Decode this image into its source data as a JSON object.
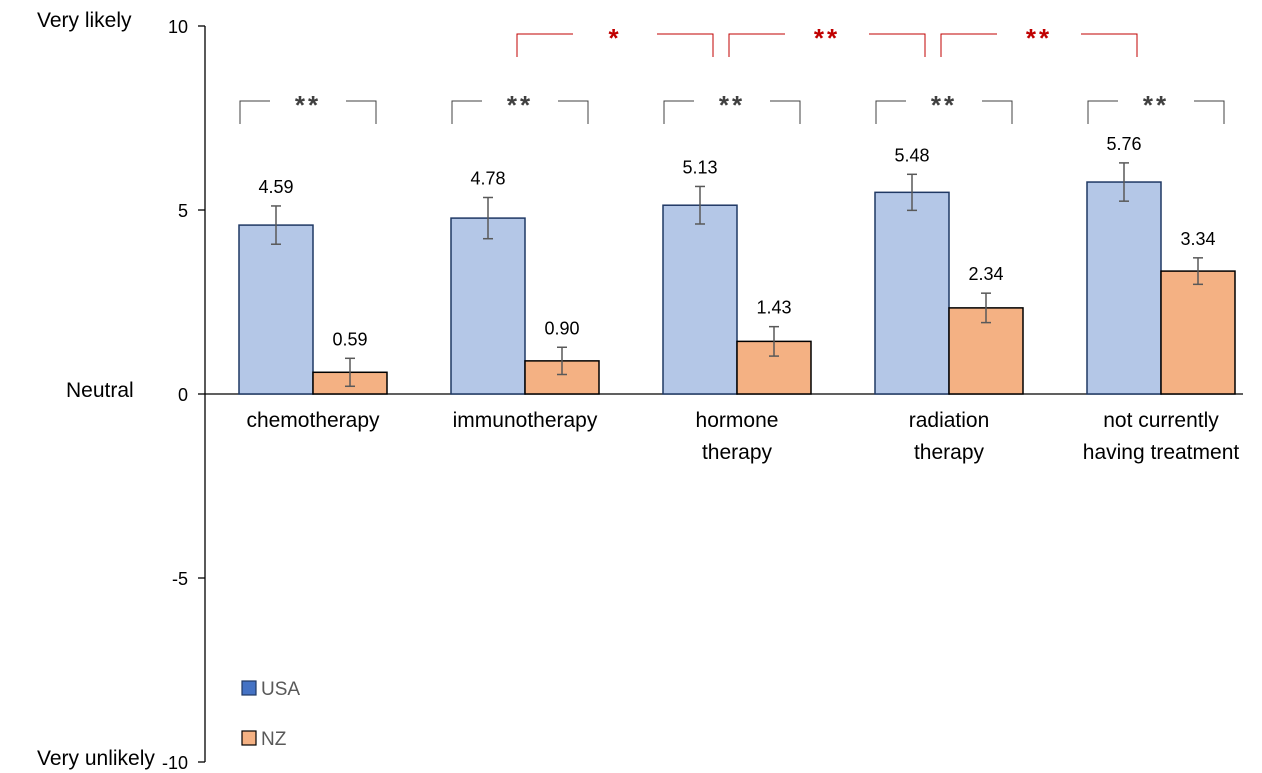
{
  "chart_data": {
    "type": "bar",
    "categories": [
      "chemotherapy",
      "immunotherapy",
      "hormone therapy",
      "radiation therapy",
      "not currently having treatment"
    ],
    "category_lines": [
      [
        "chemotherapy"
      ],
      [
        "immunotherapy"
      ],
      [
        "hormone",
        "therapy"
      ],
      [
        "radiation",
        "therapy"
      ],
      [
        "not currently",
        "having treatment"
      ]
    ],
    "series": [
      {
        "name": "USA",
        "values": [
          4.59,
          4.78,
          5.13,
          5.48,
          5.76
        ],
        "error": [
          0.52,
          0.56,
          0.51,
          0.49,
          0.52
        ],
        "labels": [
          "4.59",
          "4.78",
          "5.13",
          "5.48",
          "5.76"
        ],
        "color": "#b4c7e7",
        "edge": "#1f3864",
        "legend_color": "#4472c4"
      },
      {
        "name": "NZ",
        "values": [
          0.59,
          0.9,
          1.43,
          2.34,
          3.34
        ],
        "error": [
          0.38,
          0.37,
          0.4,
          0.4,
          0.36
        ],
        "labels": [
          "0.59",
          "0.90",
          "1.43",
          "2.34",
          "3.34"
        ],
        "color": "#f4b183",
        "edge": "#000000",
        "legend_color": "#f4b183"
      }
    ],
    "ylim": [
      -10,
      10
    ],
    "yticks": [
      10,
      5,
      0,
      -5,
      -10
    ],
    "ytick_labels": [
      "10",
      "5",
      "0",
      "-5",
      "-10"
    ],
    "y_anchor_labels": {
      "top": "Very likely",
      "middle": "Neutral",
      "bottom": "Very unlikely"
    },
    "within_category_significance": [
      "**",
      "**",
      "**",
      "**",
      "**"
    ],
    "between_category_significance": [
      {
        "from": 1,
        "to": 2,
        "label": "*"
      },
      {
        "from": 2,
        "to": 3,
        "label": "**"
      },
      {
        "from": 3,
        "to": 4,
        "label": "**"
      }
    ],
    "significance_color": "#c00000",
    "legend_position": "bottom-left",
    "grid": false
  }
}
